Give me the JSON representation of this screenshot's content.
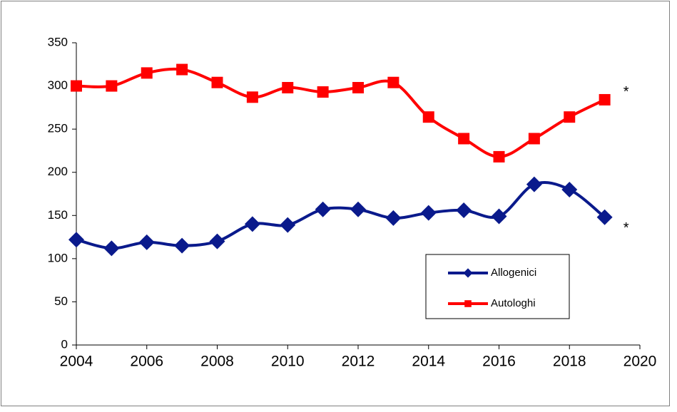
{
  "chart_data": {
    "type": "line",
    "x": [
      2004,
      2005,
      2006,
      2007,
      2008,
      2009,
      2010,
      2011,
      2012,
      2013,
      2014,
      2015,
      2016,
      2017,
      2018,
      2019
    ],
    "series": [
      {
        "name": "Allogenici",
        "color": "#0a1a8c",
        "marker": "diamond",
        "values": [
          122,
          112,
          119,
          115,
          120,
          140,
          139,
          157,
          157,
          147,
          153,
          156,
          149,
          186,
          180,
          148
        ]
      },
      {
        "name": "Autologhi",
        "color": "#ff0000",
        "marker": "square",
        "values": [
          300,
          300,
          315,
          319,
          304,
          287,
          298,
          293,
          298,
          304,
          264,
          239,
          218,
          239,
          264,
          284
        ]
      }
    ],
    "annotations": [
      "*",
      "*"
    ],
    "xlim": [
      2004,
      2020
    ],
    "xticks": [
      2004,
      2006,
      2008,
      2010,
      2012,
      2014,
      2016,
      2018,
      2020
    ],
    "ylim": [
      0,
      350
    ],
    "yticks": [
      0,
      50,
      100,
      150,
      200,
      250,
      300,
      350
    ],
    "grid": false,
    "legend": "lower right",
    "smooth": true
  }
}
